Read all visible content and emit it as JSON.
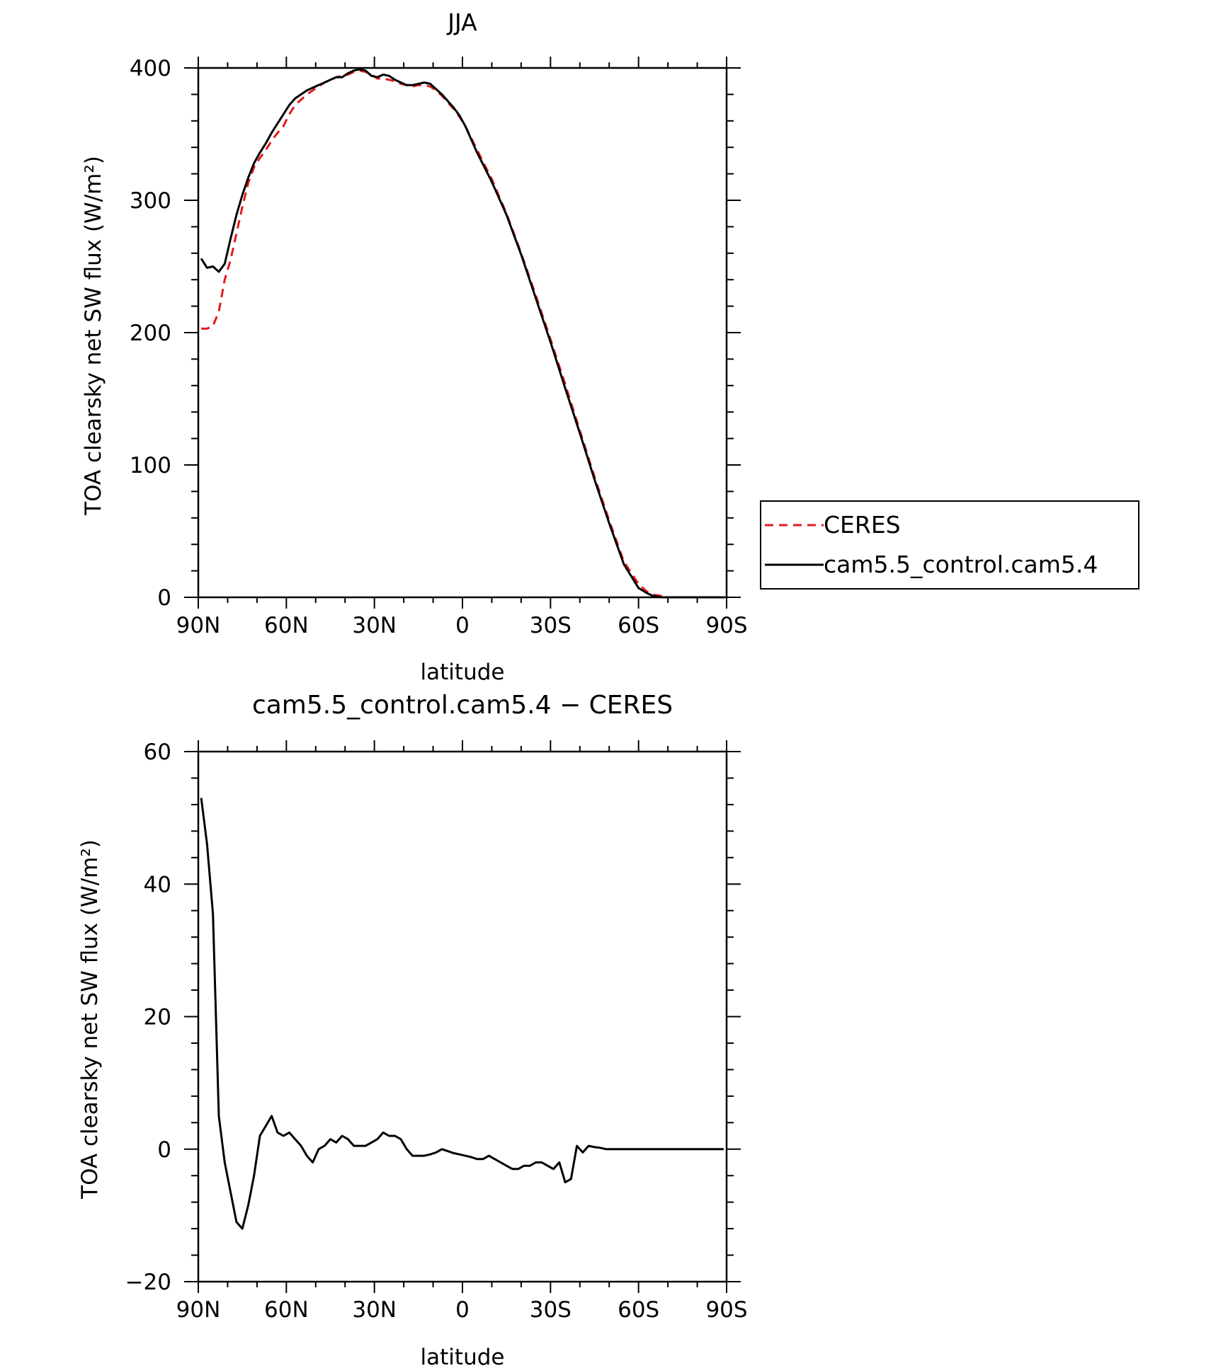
{
  "chart_data": [
    {
      "type": "line",
      "title": "JJA",
      "xlabel": "latitude",
      "ylabel": "TOA clearsky net SW flux (W/m²)",
      "xlim": [
        90,
        -90
      ],
      "ylim": [
        0,
        400
      ],
      "xticks": [
        90,
        60,
        30,
        0,
        -30,
        -60,
        -90
      ],
      "xtick_labels": [
        "90N",
        "60N",
        "30N",
        "0",
        "30S",
        "60S",
        "90S"
      ],
      "yticks": [
        0,
        100,
        200,
        300,
        400
      ],
      "ytick_labels": [
        "0",
        "100",
        "200",
        "300",
        "400"
      ],
      "grid": false,
      "legend": "right",
      "series": [
        {
          "name": "CERES",
          "color": "#e41a1c",
          "dash": "dashed",
          "x": [
            89,
            87,
            85,
            83,
            81,
            79,
            77,
            75,
            73,
            71,
            69,
            67,
            65,
            63,
            61,
            59,
            57,
            55,
            53,
            51,
            49,
            47,
            45,
            43,
            41,
            39,
            37,
            35,
            33,
            31,
            29,
            27,
            25,
            23,
            21,
            19,
            17,
            15,
            13,
            11,
            9,
            7,
            5,
            3,
            1,
            -1,
            -5,
            -10,
            -15,
            -20,
            -25,
            -30,
            -35,
            -40,
            -45,
            -50,
            -55,
            -60,
            -63,
            -65,
            -68,
            -70,
            -73,
            -76,
            -79,
            -82,
            -85,
            -89
          ],
          "y": [
            203,
            203,
            205,
            216,
            240,
            255,
            275,
            295,
            313,
            325,
            332,
            338,
            345,
            351,
            356,
            365,
            372,
            376,
            380,
            383,
            386,
            389,
            391,
            393,
            394,
            395,
            397,
            398,
            397,
            395,
            392,
            392,
            391,
            390,
            388,
            387,
            386,
            387,
            387,
            386,
            383,
            379,
            374,
            369,
            363,
            356,
            338,
            316,
            290,
            260,
            228,
            195,
            161,
            126,
            91,
            58,
            27,
            10,
            4,
            2,
            1,
            0,
            0,
            0,
            0,
            0,
            0,
            0
          ]
        },
        {
          "name": "cam5.5_control.cam5.4",
          "color": "#000000",
          "dash": "solid",
          "x": [
            89,
            87,
            85,
            83,
            81,
            79,
            77,
            75,
            73,
            71,
            69,
            67,
            65,
            63,
            61,
            59,
            57,
            55,
            53,
            51,
            49,
            47,
            45,
            43,
            41,
            39,
            37,
            35,
            33,
            31,
            29,
            27,
            25,
            23,
            21,
            19,
            17,
            15,
            13,
            11,
            9,
            7,
            5,
            3,
            1,
            -1,
            -5,
            -10,
            -15,
            -20,
            -25,
            -30,
            -35,
            -40,
            -45,
            -50,
            -55,
            -60,
            -63,
            -65,
            -68,
            -70,
            -73,
            -76,
            -79,
            -82,
            -85,
            -89
          ],
          "y": [
            256,
            249,
            250,
            246,
            252,
            271,
            289,
            304,
            317,
            328,
            336,
            343,
            351,
            358,
            365,
            372,
            377,
            380,
            383,
            385,
            387,
            389,
            391,
            393,
            393,
            396,
            398,
            399,
            398,
            394,
            393,
            395,
            394,
            391,
            389,
            387,
            387,
            388,
            389,
            388,
            384,
            380,
            375,
            370,
            364,
            356,
            336,
            314,
            289,
            259,
            226,
            193,
            158,
            124,
            89,
            56,
            25,
            7,
            3,
            1,
            0,
            0,
            0,
            0,
            0,
            0,
            0,
            0
          ]
        }
      ]
    },
    {
      "type": "line",
      "title": "cam5.5_control.cam5.4 − CERES",
      "xlabel": "latitude",
      "ylabel": "TOA clearsky net SW flux (W/m²)",
      "xlim": [
        90,
        -90
      ],
      "ylim": [
        -20,
        60
      ],
      "xticks": [
        90,
        60,
        30,
        0,
        -30,
        -60,
        -90
      ],
      "xtick_labels": [
        "90N",
        "60N",
        "30N",
        "0",
        "30S",
        "60S",
        "90S"
      ],
      "yticks": [
        -20,
        0,
        20,
        40,
        60
      ],
      "ytick_labels": [
        "−20",
        "0",
        "20",
        "40",
        "60"
      ],
      "grid": false,
      "series": [
        {
          "color": "#000000",
          "dash": "solid",
          "x": [
            89,
            87,
            85,
            83,
            81,
            79,
            77,
            75,
            73,
            71,
            69,
            67,
            65,
            63,
            61,
            59,
            57,
            55,
            53,
            51,
            49,
            47,
            45,
            43,
            41,
            39,
            37,
            35,
            33,
            31,
            29,
            27,
            25,
            23,
            21,
            19,
            17,
            15,
            13,
            11,
            9,
            7,
            5,
            3,
            1,
            -1,
            -3,
            -5,
            -7,
            -9,
            -11,
            -13,
            -15,
            -17,
            -19,
            -21,
            -23,
            -25,
            -27,
            -29,
            -31,
            -33,
            -35,
            -37,
            -39,
            -41,
            -43,
            -45,
            -47,
            -49,
            -51,
            -53,
            -55,
            -57,
            -59,
            -61,
            -63,
            -65,
            -67,
            -69,
            -71,
            -73,
            -75,
            -77,
            -79,
            -81,
            -83,
            -85,
            -87,
            -89
          ],
          "y": [
            53,
            46,
            35.5,
            5,
            -2,
            -6.5,
            -11,
            -12,
            -8.5,
            -4,
            2,
            3.5,
            5,
            2.5,
            2,
            2.5,
            1.5,
            0.5,
            -1,
            -2,
            0,
            0.5,
            1.5,
            1,
            2,
            1.5,
            0.5,
            0.5,
            0.5,
            1,
            1.5,
            2.5,
            2,
            2,
            1.5,
            0,
            -1,
            -1,
            -1,
            -0.8,
            -0.5,
            0,
            -0.3,
            -0.6,
            -0.8,
            -1,
            -1.2,
            -1.5,
            -1.5,
            -1,
            -1.5,
            -2,
            -2.5,
            -3,
            -3,
            -2.5,
            -2.5,
            -2,
            -2,
            -2.5,
            -3,
            -2,
            -5,
            -4.5,
            0.5,
            -0.5,
            0.5,
            0.3,
            0.2,
            0,
            0,
            0,
            0,
            0,
            0,
            0,
            0,
            0,
            0,
            0,
            0,
            0,
            0,
            0,
            0,
            0,
            0,
            0,
            0,
            0
          ]
        }
      ]
    }
  ]
}
